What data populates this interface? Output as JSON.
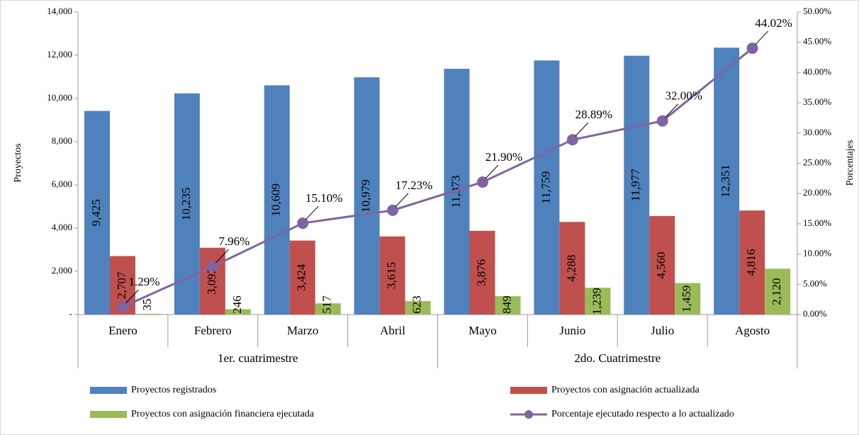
{
  "chart_data": {
    "type": "bar",
    "categories": [
      "Enero",
      "Febrero",
      "Marzo",
      "Abril",
      "Mayo",
      "Junio",
      "Julio",
      "Agosto"
    ],
    "groups": [
      {
        "name": "1er. cuatrimestre",
        "span": 4
      },
      {
        "name": "2do. Cuatrimestre",
        "span": 4
      }
    ],
    "ylabel": "Proyectos",
    "y2label": "Porcentajes",
    "ylim": [
      0,
      14000
    ],
    "yticks": [
      {
        "value": 0,
        "label": "-"
      },
      {
        "value": 2000,
        "label": "2,000"
      },
      {
        "value": 4000,
        "label": "4,000"
      },
      {
        "value": 6000,
        "label": "6,000"
      },
      {
        "value": 8000,
        "label": "8,000"
      },
      {
        "value": 10000,
        "label": "10,000"
      },
      {
        "value": 12000,
        "label": "12,000"
      },
      {
        "value": 14000,
        "label": "14,000"
      }
    ],
    "y2lim": [
      0,
      50
    ],
    "y2ticks": [
      {
        "value": 0,
        "label": "0.00%"
      },
      {
        "value": 5,
        "label": "5.00%"
      },
      {
        "value": 10,
        "label": "10.00%"
      },
      {
        "value": 15,
        "label": "15.00%"
      },
      {
        "value": 20,
        "label": "20.00%"
      },
      {
        "value": 25,
        "label": "25.00%"
      },
      {
        "value": 30,
        "label": "30.00%"
      },
      {
        "value": 35,
        "label": "35.00%"
      },
      {
        "value": 40,
        "label": "40.00%"
      },
      {
        "value": 45,
        "label": "45.00%"
      },
      {
        "value": 50,
        "label": "50.00%"
      }
    ],
    "grid": false,
    "series": [
      {
        "name": "Proyectos registrados",
        "color": "#4f81bd",
        "type": "bar",
        "values": [
          9425,
          10235,
          10609,
          10979,
          11373,
          11759,
          11977,
          12351
        ],
        "value_labels": [
          "9,425",
          "10,235",
          "10,609",
          "10,979",
          "11,373",
          "11,759",
          "11,977",
          "12,351"
        ]
      },
      {
        "name": "Proyectos con asignación actualizada",
        "color": "#c0504d",
        "type": "bar",
        "values": [
          2707,
          3092,
          3424,
          3615,
          3876,
          4288,
          4560,
          4816
        ],
        "value_labels": [
          "2,707",
          "3,092",
          "3,424",
          "3,615",
          "3,876",
          "4,288",
          "4,560",
          "4,816"
        ]
      },
      {
        "name": "Proyectos con asignación financiera ejecutada",
        "color": "#9bbb59",
        "type": "bar",
        "values": [
          35,
          246,
          517,
          623,
          849,
          1239,
          1459,
          2120
        ],
        "value_labels": [
          "35",
          "246",
          "517",
          "623",
          "849",
          "1,239",
          "1,459",
          "2,120"
        ]
      },
      {
        "name": "Porcentaje ejecutado respecto a lo actualizado",
        "color": "#8064a2",
        "type": "line",
        "axis": "y2",
        "values": [
          1.29,
          7.96,
          15.1,
          17.23,
          21.9,
          28.89,
          32.0,
          44.02
        ],
        "value_labels": [
          "1.29%",
          "7.96%",
          "15.10%",
          "17.23%",
          "21.90%",
          "28.89%",
          "32.00%",
          "44.02%"
        ]
      }
    ]
  }
}
